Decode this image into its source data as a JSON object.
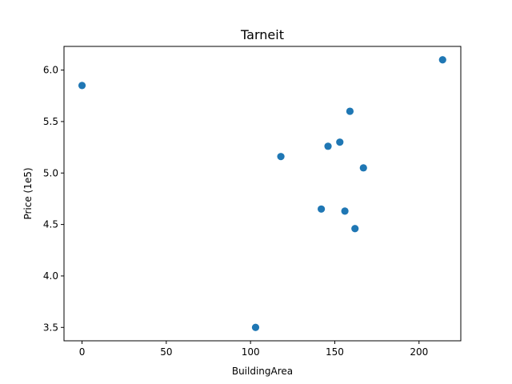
{
  "chart_data": {
    "type": "scatter",
    "title": "Tarneit",
    "xlabel": "BuildingArea",
    "ylabel": "Price (1e5)",
    "xlim": [
      -10.7,
      224.8
    ],
    "ylim": [
      3.37,
      6.23
    ],
    "xticks": [
      0,
      50,
      100,
      150,
      200
    ],
    "yticks": [
      3.5,
      4.0,
      4.5,
      5.0,
      5.5,
      6.0
    ],
    "xtick_labels": [
      "0",
      "50",
      "100",
      "150",
      "200"
    ],
    "ytick_labels": [
      "3.5",
      "4.0",
      "4.5",
      "5.0",
      "5.5",
      "6.0"
    ],
    "grid": false,
    "marker_color": "#1f77b4",
    "points": [
      {
        "x": 0,
        "y": 5.85
      },
      {
        "x": 103,
        "y": 3.5
      },
      {
        "x": 118,
        "y": 5.16
      },
      {
        "x": 142,
        "y": 4.65
      },
      {
        "x": 146,
        "y": 5.26
      },
      {
        "x": 153,
        "y": 5.3
      },
      {
        "x": 156,
        "y": 4.63
      },
      {
        "x": 159,
        "y": 5.6
      },
      {
        "x": 162,
        "y": 4.46
      },
      {
        "x": 167,
        "y": 5.05
      },
      {
        "x": 214,
        "y": 6.1
      }
    ]
  }
}
